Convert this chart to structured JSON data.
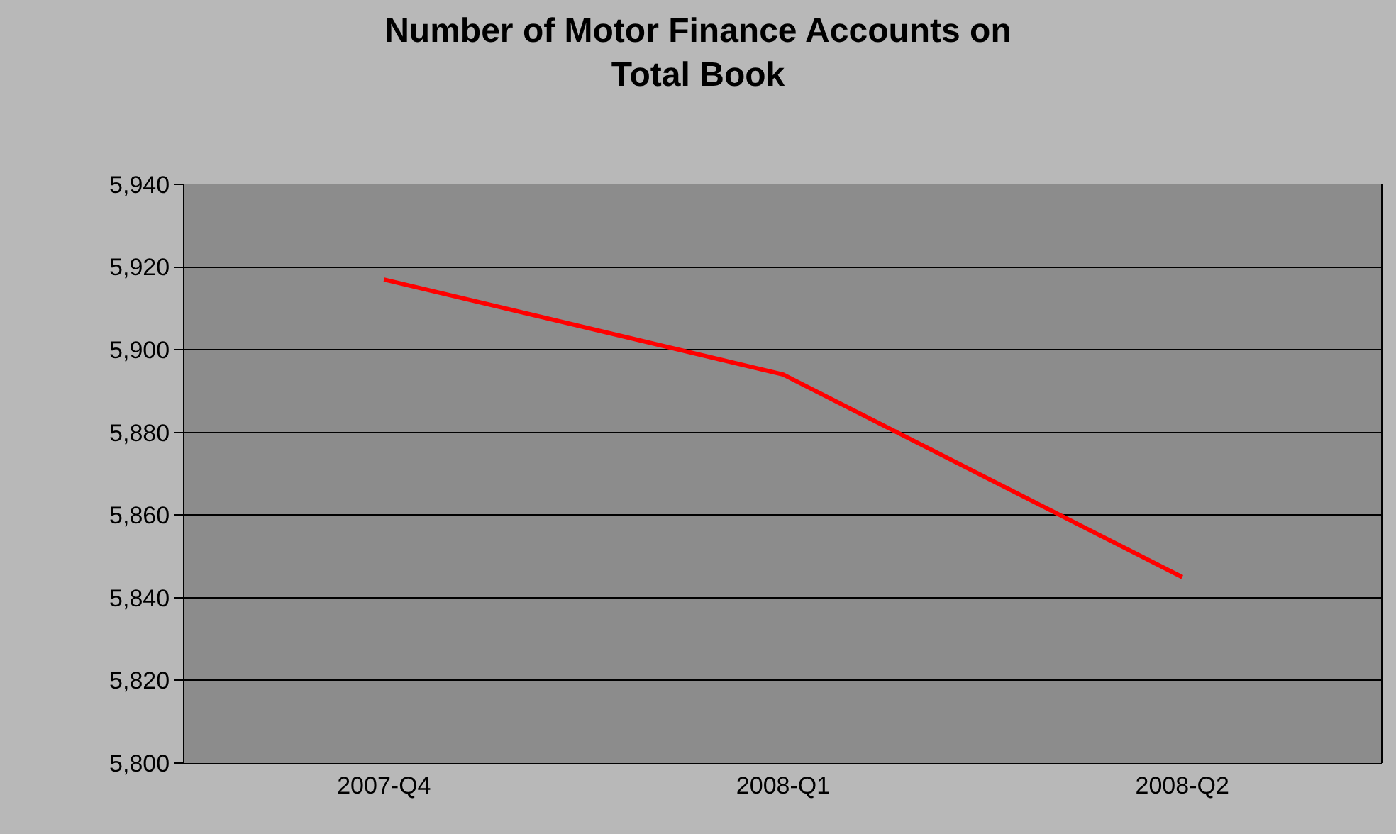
{
  "chart_data": {
    "type": "line",
    "title": "Number of Motor Finance Accounts on\nTotal Book",
    "categories": [
      "2007-Q4",
      "2008-Q1",
      "2008-Q2"
    ],
    "series": [
      {
        "color": "#ff0000",
        "values": [
          5917,
          5894,
          5845
        ]
      }
    ],
    "ylim": [
      5800,
      5940
    ],
    "yticks": [
      {
        "value": 5800,
        "label": "5,800"
      },
      {
        "value": 5820,
        "label": "5,820"
      },
      {
        "value": 5840,
        "label": "5,840"
      },
      {
        "value": 5860,
        "label": "5,860"
      },
      {
        "value": 5880,
        "label": "5,880"
      },
      {
        "value": 5900,
        "label": "5,900"
      },
      {
        "value": 5920,
        "label": "5,920"
      },
      {
        "value": 5940,
        "label": "5,940"
      }
    ],
    "grid": "y",
    "marker": "none",
    "line_style": "solid"
  }
}
